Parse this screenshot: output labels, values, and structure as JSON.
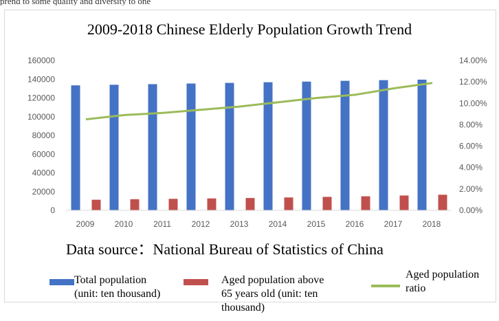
{
  "top_caption": "prend to some quality and diversity to one",
  "chart_data": {
    "type": "bar",
    "title": "2009-2018 Chinese Elderly Population Growth Trend",
    "source": "Data source：National Bureau of Statistics of China",
    "categories": [
      "2009",
      "2010",
      "2011",
      "2012",
      "2013",
      "2014",
      "2015",
      "2016",
      "2017",
      "2018"
    ],
    "series": [
      {
        "name": "Total population (unit: ten thousand)",
        "type": "bar",
        "axis": "left",
        "color": "#4472c4",
        "values": [
          133450,
          134091,
          134735,
          135404,
          136072,
          136782,
          137462,
          138271,
          139008,
          139538
        ]
      },
      {
        "name": "Aged population above 65 years old (unit: ten thousand)",
        "type": "bar",
        "axis": "left",
        "color": "#c0504d",
        "values": [
          11307,
          11894,
          12288,
          12714,
          13161,
          13755,
          14386,
          15003,
          15831,
          16658
        ]
      },
      {
        "name": "Aged population ratio",
        "type": "line",
        "axis": "right",
        "color": "#9bbb59",
        "values": [
          8.5,
          8.9,
          9.1,
          9.4,
          9.7,
          10.1,
          10.5,
          10.8,
          11.4,
          11.9
        ]
      }
    ],
    "y_left": {
      "min": 0,
      "max": 160000,
      "ticks": [
        "0",
        "20000",
        "40000",
        "60000",
        "80000",
        "100000",
        "120000",
        "140000",
        "160000"
      ]
    },
    "y_right": {
      "min": 0,
      "max": 14,
      "ticks": [
        "0.00%",
        "2.00%",
        "4.00%",
        "6.00%",
        "8.00%",
        "10.00%",
        "12.00%",
        "14.00%"
      ]
    },
    "legend": {
      "position": "bottom",
      "items": [
        {
          "line1": "Total population",
          "line2": "(unit: ten thousand)"
        },
        {
          "line1": "Aged population above",
          "line2": "65 years old (unit: ten",
          "line3": "thousand)"
        },
        {
          "line1": "Aged population",
          "line2": "ratio"
        }
      ]
    }
  }
}
